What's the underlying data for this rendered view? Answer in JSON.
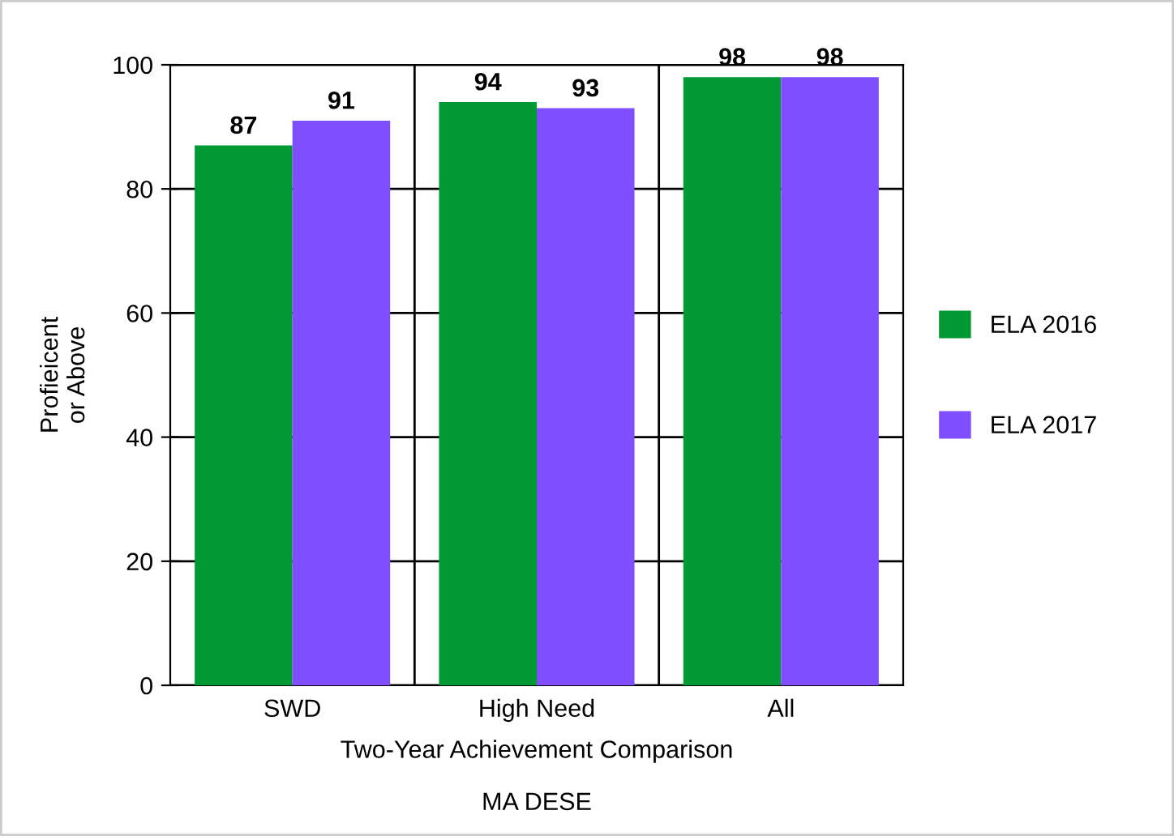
{
  "chart_data": {
    "type": "bar",
    "xlabel": "Two-Year Achievement Comparison",
    "ylabel": "Profieicent\nor Above",
    "categories": [
      "SWD",
      "High Need",
      "All"
    ],
    "series": [
      {
        "name": "ELA 2016",
        "color": "#009933",
        "values": [
          87,
          94,
          98
        ]
      },
      {
        "name": "ELA 2017",
        "color": "#7f4fff",
        "values": [
          91,
          93,
          98
        ]
      }
    ],
    "ylim": [
      0,
      100
    ],
    "yticks": [
      0,
      20,
      40,
      60,
      80,
      100
    ],
    "grid": true,
    "legend": "right",
    "data_labels": true,
    "annotations": [
      "MA DESE"
    ]
  }
}
